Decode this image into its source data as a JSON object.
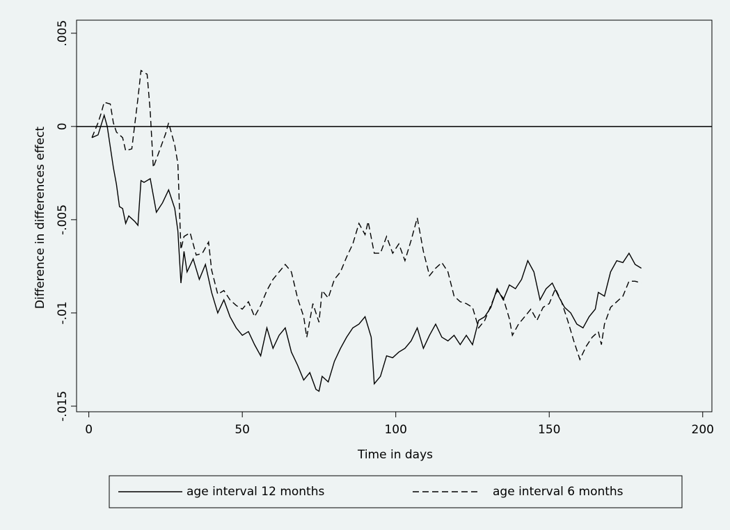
{
  "chart_data": {
    "type": "line",
    "xlabel": "Time in days",
    "ylabel": "Difference in differences effect",
    "xlim": [
      -4,
      203
    ],
    "ylim": [
      -0.0153,
      0.0057
    ],
    "xticks": [
      0,
      50,
      100,
      150,
      200
    ],
    "yticks": [
      {
        "value": 0.005,
        "label": ".005"
      },
      0,
      {
        "value": -0.005,
        "label": "-.005"
      },
      {
        "value": -0.01,
        "label": "-.01"
      },
      {
        "value": -0.015,
        "label": "-.015"
      }
    ],
    "yline": 0,
    "legend": "bottom",
    "series": [
      {
        "name": "age interval 12 months",
        "color": "#000000",
        "style": "solid",
        "x": [
          1,
          3,
          5,
          6,
          7,
          8,
          9,
          10,
          11,
          12,
          13,
          15,
          16,
          17,
          18,
          20,
          22,
          24,
          26,
          28,
          29,
          30,
          31,
          32,
          34,
          36,
          38,
          40,
          42,
          44,
          46,
          48,
          50,
          52,
          54,
          56,
          58,
          60,
          62,
          64,
          66,
          68,
          70,
          72,
          74,
          75,
          76,
          78,
          80,
          82,
          84,
          86,
          88,
          90,
          92,
          93,
          95,
          97,
          99,
          101,
          103,
          105,
          107,
          109,
          111,
          113,
          115,
          117,
          119,
          121,
          123,
          125,
          127,
          129,
          131,
          133,
          135,
          137,
          139,
          141,
          143,
          145,
          147,
          149,
          151,
          153,
          155,
          157,
          159,
          161,
          163,
          165,
          166,
          168,
          170,
          172,
          174,
          176,
          178,
          180
        ],
        "values": [
          -0.0006,
          -0.00045,
          0.0006,
          0,
          -0.0011,
          -0.0022,
          -0.0031,
          -0.0043,
          -0.0044,
          -0.0052,
          -0.0048,
          -0.0051,
          -0.0053,
          -0.0029,
          -0.003,
          -0.0028,
          -0.0046,
          -0.0041,
          -0.0034,
          -0.0044,
          -0.0056,
          -0.0084,
          -0.0067,
          -0.0078,
          -0.0071,
          -0.0082,
          -0.0074,
          -0.0089,
          -0.01,
          -0.0093,
          -0.0102,
          -0.0108,
          -0.0112,
          -0.011,
          -0.0117,
          -0.0123,
          -0.0108,
          -0.0119,
          -0.0112,
          -0.0108,
          -0.0121,
          -0.0128,
          -0.0136,
          -0.0132,
          -0.0141,
          -0.0142,
          -0.0134,
          -0.0137,
          -0.0126,
          -0.0119,
          -0.0113,
          -0.0108,
          -0.0106,
          -0.0102,
          -0.0113,
          -0.0138,
          -0.0134,
          -0.0123,
          -0.0124,
          -0.0121,
          -0.0119,
          -0.0115,
          -0.0108,
          -0.0119,
          -0.0112,
          -0.0106,
          -0.0113,
          -0.0115,
          -0.0112,
          -0.0117,
          -0.0112,
          -0.0117,
          -0.0104,
          -0.0102,
          -0.0097,
          -0.0087,
          -0.0093,
          -0.0085,
          -0.0087,
          -0.0082,
          -0.0072,
          -0.0078,
          -0.0093,
          -0.0087,
          -0.0084,
          -0.0091,
          -0.0097,
          -0.01,
          -0.0106,
          -0.0108,
          -0.0102,
          -0.0098,
          -0.0089,
          -0.0091,
          -0.0078,
          -0.0072,
          -0.0073,
          -0.0068,
          -0.0074,
          -0.0076
        ]
      },
      {
        "name": "age interval 6 months",
        "color": "#000000",
        "style": "dashed",
        "x": [
          1,
          3,
          4,
          5,
          7,
          8,
          9,
          11,
          12,
          14,
          16,
          17,
          19,
          20,
          21,
          23,
          25,
          26,
          28,
          29,
          30,
          31,
          33,
          35,
          37,
          39,
          40,
          42,
          44,
          46,
          48,
          50,
          52,
          54,
          56,
          58,
          60,
          62,
          64,
          66,
          68,
          70,
          71,
          73,
          75,
          76,
          78,
          80,
          82,
          84,
          86,
          88,
          90,
          91,
          93,
          95,
          97,
          99,
          101,
          103,
          105,
          107,
          109,
          111,
          113,
          115,
          117,
          119,
          121,
          123,
          125,
          127,
          129,
          131,
          133,
          135,
          137,
          138,
          140,
          142,
          144,
          146,
          148,
          150,
          152,
          154,
          156,
          158,
          160,
          162,
          164,
          166,
          167,
          168,
          170,
          172,
          174,
          176,
          178,
          180
        ],
        "values": [
          -0.0006,
          0.0002,
          0.0007,
          0.0013,
          0.0012,
          0.0002,
          -0.0003,
          -0.0006,
          -0.0013,
          -0.0012,
          0.0015,
          0.003,
          0.0028,
          0.0008,
          -0.0022,
          -0.0013,
          -0.0004,
          0.0002,
          -0.001,
          -0.002,
          -0.0066,
          -0.0059,
          -0.0057,
          -0.0069,
          -0.0068,
          -0.0062,
          -0.0077,
          -0.009,
          -0.0088,
          -0.0093,
          -0.0096,
          -0.0098,
          -0.0094,
          -0.0102,
          -0.0096,
          -0.0088,
          -0.0082,
          -0.0078,
          -0.0074,
          -0.0078,
          -0.0092,
          -0.0102,
          -0.0113,
          -0.0095,
          -0.0105,
          -0.0088,
          -0.0092,
          -0.0082,
          -0.0078,
          -0.007,
          -0.0063,
          -0.0052,
          -0.0058,
          -0.0051,
          -0.0068,
          -0.0068,
          -0.0059,
          -0.0068,
          -0.0063,
          -0.0072,
          -0.0061,
          -0.0049,
          -0.0067,
          -0.008,
          -0.0076,
          -0.0073,
          -0.0078,
          -0.0091,
          -0.0094,
          -0.0095,
          -0.0097,
          -0.0108,
          -0.0104,
          -0.0096,
          -0.0088,
          -0.0092,
          -0.0103,
          -0.0112,
          -0.0106,
          -0.0102,
          -0.0098,
          -0.0104,
          -0.0097,
          -0.0095,
          -0.0087,
          -0.0094,
          -0.0104,
          -0.0115,
          -0.0125,
          -0.0118,
          -0.0113,
          -0.011,
          -0.0117,
          -0.0106,
          -0.0097,
          -0.0094,
          -0.0091,
          -0.0083,
          -0.0083,
          -0.0084
        ]
      }
    ]
  }
}
